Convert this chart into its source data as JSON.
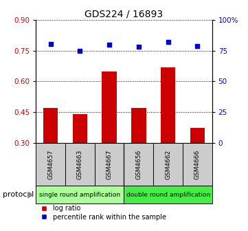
{
  "title": "GDS224 / 16893",
  "samples": [
    "GSM4657",
    "GSM4663",
    "GSM4667",
    "GSM4656",
    "GSM4662",
    "GSM4666"
  ],
  "log_ratio": [
    0.472,
    0.44,
    0.648,
    0.472,
    0.668,
    0.375
  ],
  "percentile_rank": [
    80.5,
    75.0,
    80.0,
    78.0,
    82.0,
    78.5
  ],
  "bar_color": "#cc0000",
  "dot_color": "#0000cc",
  "ylim_left": [
    0.3,
    0.9
  ],
  "ylim_right": [
    0,
    100
  ],
  "left_yticks": [
    0.3,
    0.45,
    0.6,
    0.75,
    0.9
  ],
  "right_yticks": [
    0,
    25,
    50,
    75,
    100
  ],
  "right_yticklabels": [
    "0",
    "25",
    "50",
    "75",
    "100%"
  ],
  "group1_label": "single round amplification",
  "group2_label": "double round amplification",
  "group1_color": "#aaff99",
  "group2_color": "#44ee44",
  "protocol_label": "protocol",
  "legend_ratio_label": "log ratio",
  "legend_pct_label": "percentile rank within the sample",
  "sample_box_color": "#cccccc",
  "title_fontsize": 10,
  "tick_fontsize": 7.5,
  "sample_fontsize": 6.5,
  "proto_fontsize": 6.5,
  "legend_fontsize": 7
}
